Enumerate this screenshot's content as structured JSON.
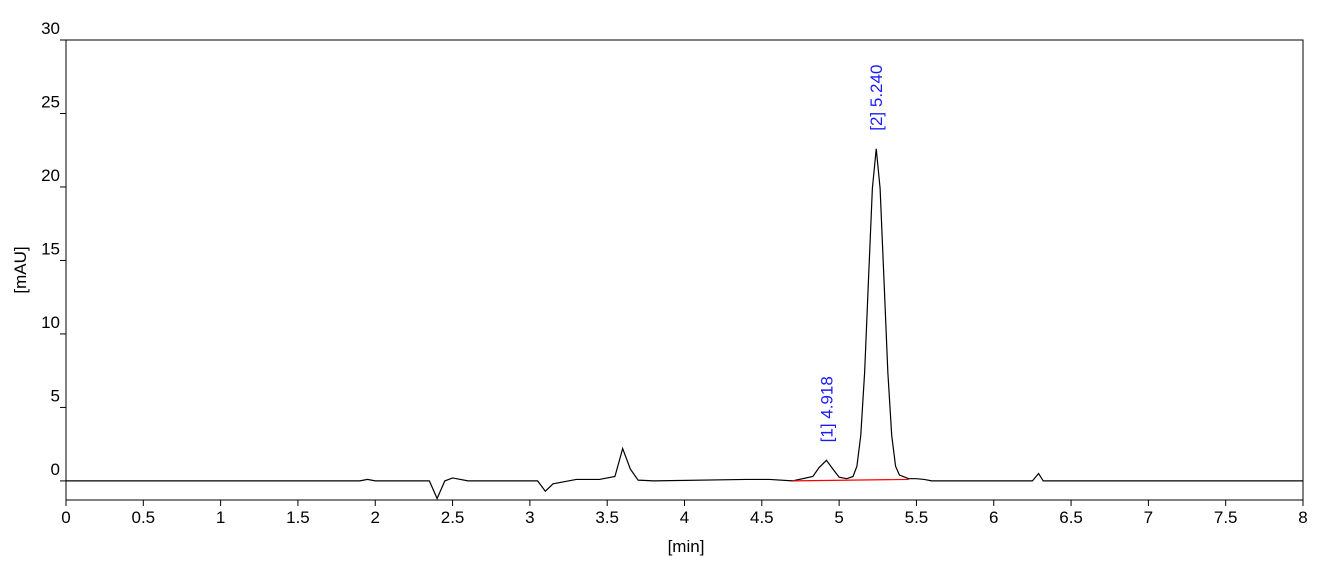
{
  "chart_data": {
    "type": "line",
    "xlabel": "[min]",
    "ylabel": "[mAU]",
    "xlim": [
      0,
      8
    ],
    "ylim": [
      -1.3,
      30
    ],
    "xticks": [
      0,
      0.5,
      1,
      1.5,
      2,
      2.5,
      3,
      3.5,
      4,
      4.5,
      5,
      5.5,
      6,
      6.5,
      7,
      7.5,
      8
    ],
    "yticks": [
      0,
      5,
      10,
      15,
      20,
      25,
      30
    ],
    "series": [
      {
        "color": "#000000",
        "x": [
          0,
          1.9,
          1.95,
          2.0,
          2.35,
          2.4,
          2.45,
          2.5,
          2.6,
          3.05,
          3.1,
          3.15,
          3.3,
          3.45,
          3.55,
          3.6,
          3.65,
          3.7,
          3.8,
          4.4,
          4.55,
          4.7,
          4.83,
          4.87,
          4.918,
          4.96,
          5.0,
          5.05,
          5.09,
          5.115,
          5.14,
          5.165,
          5.19,
          5.215,
          5.24,
          5.265,
          5.29,
          5.315,
          5.34,
          5.365,
          5.39,
          5.45,
          5.5,
          5.55,
          5.6,
          6.25,
          6.29,
          6.32,
          8
        ],
        "values": [
          0,
          0,
          0.1,
          0,
          0,
          -1.2,
          0,
          0.2,
          0,
          0,
          -0.7,
          -0.2,
          0.1,
          0.1,
          0.3,
          2.2,
          0.8,
          0.05,
          0,
          0.1,
          0.1,
          0,
          0.3,
          0.9,
          1.4,
          0.8,
          0.25,
          0.15,
          0.3,
          1.0,
          3.1,
          7.4,
          13.7,
          19.9,
          22.6,
          19.9,
          13.7,
          7.4,
          3.1,
          1.0,
          0.4,
          0.15,
          0.15,
          0.1,
          0,
          0,
          0.5,
          0,
          0
        ]
      },
      {
        "color": "#ff0000",
        "x": [
          4.7,
          5.45
        ],
        "values": [
          0,
          0.1
        ]
      }
    ],
    "annotations": [
      {
        "x": 4.918,
        "text": "[1]  4.918"
      },
      {
        "x": 5.24,
        "text": "[2]  5.240"
      }
    ]
  }
}
